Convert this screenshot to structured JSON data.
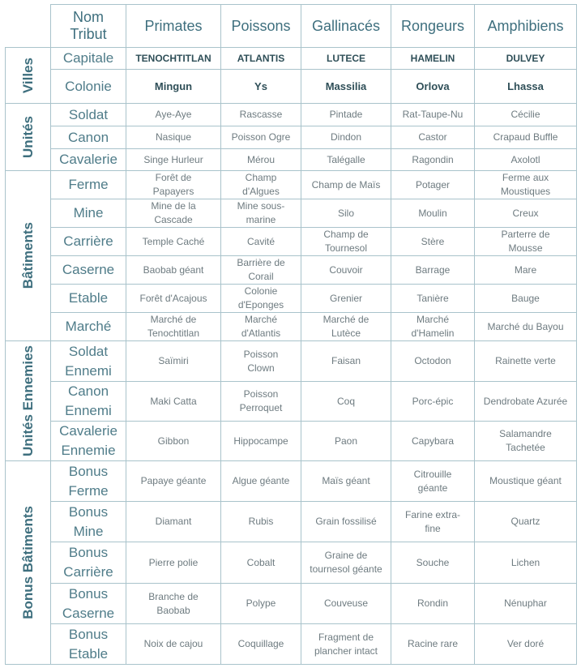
{
  "header": {
    "corner": "Nom Tribut",
    "columns": [
      "Primates",
      "Poissons",
      "Gallinacés",
      "Rongeurs",
      "Amphibiens"
    ]
  },
  "groups": [
    {
      "label": "Villes",
      "rows": [
        {
          "label": "Capitale",
          "cells": [
            "TENOCHTITLAN",
            "ATLANTIS",
            "LUTECE",
            "HAMELIN",
            "DULVEY"
          ]
        },
        {
          "label": "Colonie",
          "cells": [
            "Mingun",
            "Ys",
            "Massilia",
            "Orlova",
            "Lhassa"
          ]
        }
      ]
    },
    {
      "label": "Unités",
      "rows": [
        {
          "label": "Soldat",
          "cells": [
            "Aye-Aye",
            "Rascasse",
            "Pintade",
            "Rat-Taupe-Nu",
            "Cécilie"
          ]
        },
        {
          "label": "Canon",
          "cells": [
            "Nasique",
            "Poisson Ogre",
            "Dindon",
            "Castor",
            "Crapaud Buffle"
          ]
        },
        {
          "label": "Cavalerie",
          "cells": [
            "Singe Hurleur",
            "Mérou",
            "Talégalle",
            "Ragondin",
            "Axolotl"
          ]
        }
      ]
    },
    {
      "label": "Bâtiments",
      "rows": [
        {
          "label": "Ferme",
          "cells": [
            "Forêt de Papayers",
            "Champ d'Algues",
            "Champ de Maïs",
            "Potager",
            "Ferme aux Moustiques"
          ]
        },
        {
          "label": "Mine",
          "cells": [
            "Mine de la Cascade",
            "Mine sous-marine",
            "Silo",
            "Moulin",
            "Creux"
          ]
        },
        {
          "label": "Carrière",
          "cells": [
            "Temple Caché",
            "Cavité",
            "Champ de Tournesol",
            "Stère",
            "Parterre de Mousse"
          ]
        },
        {
          "label": "Caserne",
          "cells": [
            "Baobab géant",
            "Barrière de Corail",
            "Couvoir",
            "Barrage",
            "Mare"
          ]
        },
        {
          "label": "Etable",
          "cells": [
            "Forêt d'Acajous",
            "Colonie d'Eponges",
            "Grenier",
            "Tanière",
            "Bauge"
          ]
        },
        {
          "label": "Marché",
          "cells": [
            "Marché de Tenochtitlan",
            "Marché d'Atlantis",
            "Marché de Lutèce",
            "Marché d'Hamelin",
            "Marché du Bayou"
          ]
        }
      ]
    },
    {
      "label": "Unités Ennemies",
      "rows": [
        {
          "label": "Soldat Ennemi",
          "cells": [
            "Saïmiri",
            "Poisson Clown",
            "Faisan",
            "Octodon",
            "Rainette verte"
          ]
        },
        {
          "label": "Canon Ennemi",
          "cells": [
            "Maki Catta",
            "Poisson Perroquet",
            "Coq",
            "Porc-épic",
            "Dendrobate Azurée"
          ]
        },
        {
          "label": "Cavalerie Ennemie",
          "cells": [
            "Gibbon",
            "Hippocampe",
            "Paon",
            "Capybara",
            "Salamandre Tachetée"
          ]
        }
      ]
    },
    {
      "label": "Bonus Bâtiments",
      "rows": [
        {
          "label": "Bonus Ferme",
          "cells": [
            "Papaye géante",
            "Algue géante",
            "Maïs géant",
            "Citrouille géante",
            "Moustique géant"
          ]
        },
        {
          "label": "Bonus Mine",
          "cells": [
            "Diamant",
            "Rubis",
            "Grain fossilisé",
            "Farine extra-fine",
            "Quartz"
          ]
        },
        {
          "label": "Bonus Carrière",
          "cells": [
            "Pierre polie",
            "Cobalt",
            "Graine de tournesol géante",
            "Souche",
            "Lichen"
          ]
        },
        {
          "label": "Bonus Caserne",
          "cells": [
            "Branche de Baobab",
            "Polype",
            "Couveuse",
            "Rondin",
            "Nénuphar"
          ]
        },
        {
          "label": "Bonus Etable",
          "cells": [
            "Noix de cajou",
            "Coquillage",
            "Fragment de plancher intact",
            "Racine rare",
            "Ver doré"
          ]
        }
      ]
    }
  ]
}
